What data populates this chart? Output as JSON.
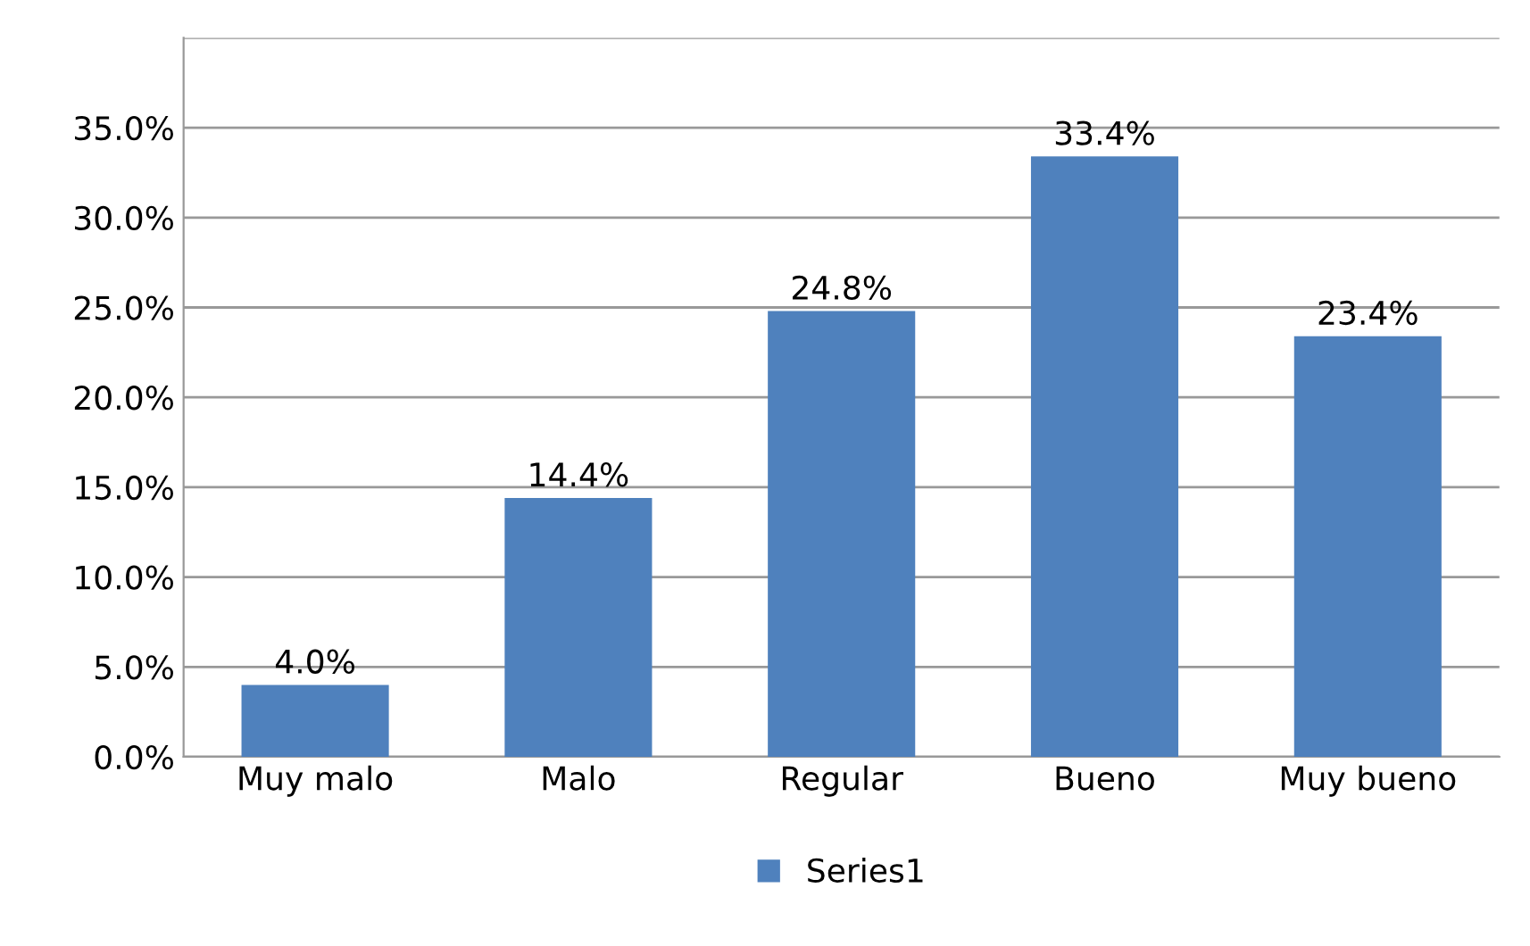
{
  "chart_data": {
    "type": "bar",
    "categories": [
      "Muy malo",
      "Malo",
      "Regular",
      "Bueno",
      "Muy bueno"
    ],
    "series": [
      {
        "name": "Series1",
        "color": "#4f81bd",
        "values": [
          4.0,
          14.4,
          24.8,
          33.4,
          23.4
        ],
        "value_labels": [
          "4.0%",
          "14.4%",
          "24.8%",
          "33.4%",
          "23.4%"
        ]
      }
    ],
    "ylim": [
      0,
      40
    ],
    "yticks": [
      {
        "value": 0,
        "label": "0.0%"
      },
      {
        "value": 5,
        "label": "5.0%"
      },
      {
        "value": 10,
        "label": "10.0%"
      },
      {
        "value": 15,
        "label": "15.0%"
      },
      {
        "value": 20,
        "label": "20.0%"
      },
      {
        "value": 25,
        "label": "25.0%"
      },
      {
        "value": 30,
        "label": "30.0%"
      },
      {
        "value": 35,
        "label": "35.0%"
      },
      {
        "value": 40,
        "label": null
      }
    ],
    "grid": "y",
    "legend": "bottom"
  }
}
